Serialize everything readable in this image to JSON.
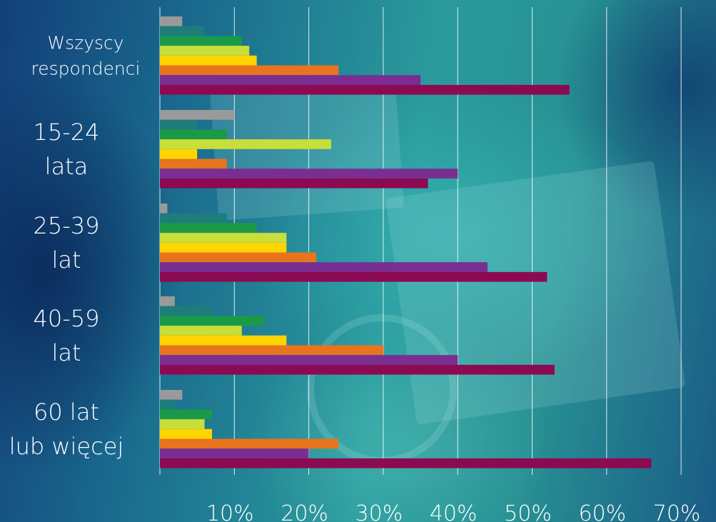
{
  "chart_data": {
    "type": "bar",
    "orientation": "horizontal",
    "categories": [
      [
        "Wszyscy",
        "respondenci"
      ],
      [
        "15-24",
        "lata"
      ],
      [
        "25-39",
        "lat"
      ],
      [
        "40-59",
        "lat"
      ],
      [
        "60 lat",
        "lub więcej"
      ]
    ],
    "series": [
      {
        "color": "#9a9a9a",
        "values": [
          3,
          10,
          1,
          2,
          3
        ]
      },
      {
        "color": "#1e7d7a",
        "values": [
          6,
          5,
          9,
          7,
          2
        ]
      },
      {
        "color": "#1a9a48",
        "values": [
          11,
          9,
          13,
          14,
          7
        ]
      },
      {
        "color": "#c8de3a",
        "values": [
          12,
          23,
          17,
          11,
          6
        ]
      },
      {
        "color": "#ffd500",
        "values": [
          13,
          5,
          17,
          17,
          7
        ]
      },
      {
        "color": "#e8741e",
        "values": [
          24,
          9,
          21,
          30,
          24
        ]
      },
      {
        "color": "#7a2e92",
        "values": [
          35,
          40,
          44,
          40,
          20
        ]
      },
      {
        "color": "#8c0a52",
        "values": [
          55,
          36,
          52,
          53,
          66
        ]
      }
    ],
    "xticks": [
      "10%",
      "20%",
      "30%",
      "40%",
      "50%",
      "60%",
      "70%"
    ],
    "xlim": [
      0,
      70
    ],
    "grid": true,
    "legend": "none"
  }
}
